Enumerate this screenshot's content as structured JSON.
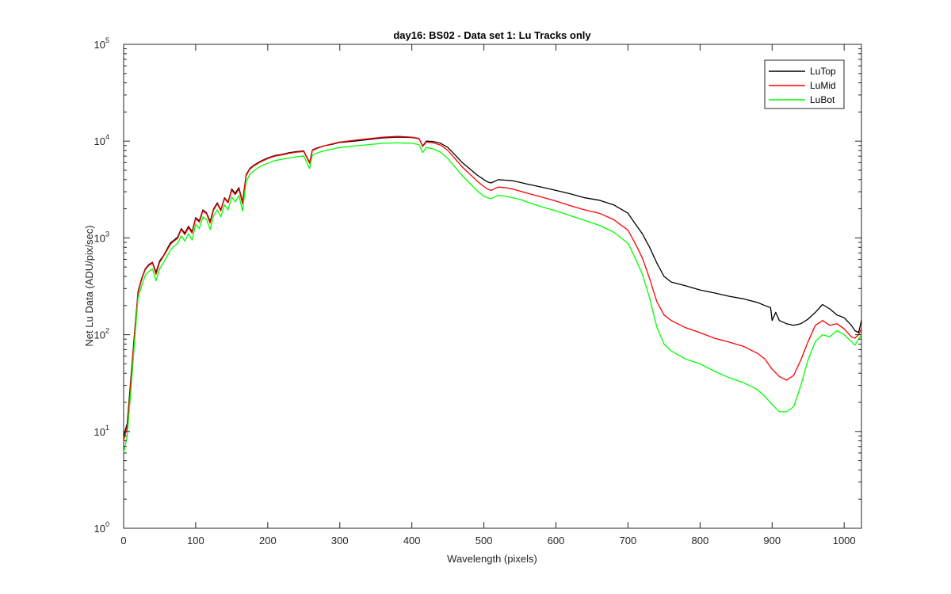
{
  "chart_data": {
    "type": "line",
    "title": "day16: BS02 - Data set 1: Lu Tracks only",
    "xlabel": "Wavelength (pixels)",
    "ylabel": "Net Lu Data (ADU/pix/sec)",
    "xlim": [
      0,
      1024
    ],
    "ylim": [
      1,
      100000
    ],
    "yscale": "log",
    "grid": false,
    "legend_position": "top-right",
    "x_ticks": [
      0,
      100,
      200,
      300,
      400,
      500,
      600,
      700,
      800,
      900,
      1000
    ],
    "y_ticks": [
      {
        "base": "10",
        "exp": "0",
        "value": 1
      },
      {
        "base": "10",
        "exp": "1",
        "value": 10
      },
      {
        "base": "10",
        "exp": "2",
        "value": 100
      },
      {
        "base": "10",
        "exp": "3",
        "value": 1000
      },
      {
        "base": "10",
        "exp": "4",
        "value": 10000
      },
      {
        "base": "10",
        "exp": "5",
        "value": 100000
      }
    ],
    "series": [
      {
        "name": "LuTop",
        "color": "#000000",
        "x": [
          0,
          5,
          10,
          15,
          20,
          25,
          30,
          35,
          40,
          45,
          50,
          55,
          60,
          65,
          70,
          75,
          80,
          85,
          90,
          95,
          100,
          105,
          110,
          115,
          120,
          125,
          130,
          135,
          140,
          145,
          150,
          155,
          160,
          165,
          170,
          175,
          180,
          190,
          200,
          210,
          220,
          230,
          240,
          250,
          258,
          262,
          270,
          280,
          290,
          300,
          320,
          340,
          360,
          380,
          400,
          410,
          415,
          420,
          430,
          440,
          450,
          460,
          470,
          480,
          490,
          500,
          505,
          510,
          520,
          530,
          540,
          550,
          560,
          580,
          600,
          620,
          640,
          660,
          680,
          700,
          710,
          720,
          730,
          740,
          750,
          760,
          780,
          800,
          820,
          840,
          860,
          880,
          890,
          898,
          900,
          905,
          910,
          920,
          930,
          940,
          950,
          960,
          970,
          980,
          990,
          1000,
          1010,
          1015,
          1020,
          1024
        ],
        "y": [
          9,
          12,
          35,
          100,
          280,
          380,
          480,
          530,
          560,
          440,
          580,
          650,
          760,
          890,
          950,
          1020,
          1250,
          1120,
          1320,
          1160,
          1620,
          1500,
          1950,
          1820,
          1480,
          2000,
          2300,
          1950,
          2600,
          2350,
          3200,
          2900,
          3300,
          2350,
          4500,
          5200,
          5600,
          6200,
          6700,
          7100,
          7300,
          7600,
          7800,
          7900,
          6000,
          8100,
          8600,
          9000,
          9300,
          9700,
          10000,
          10400,
          10800,
          11000,
          10900,
          10600,
          8900,
          10000,
          9900,
          9500,
          8600,
          7200,
          6000,
          5200,
          4500,
          4000,
          3800,
          3700,
          4000,
          3950,
          3900,
          3750,
          3600,
          3350,
          3100,
          2850,
          2600,
          2450,
          2200,
          1800,
          1400,
          1100,
          800,
          550,
          400,
          350,
          320,
          290,
          270,
          250,
          235,
          215,
          200,
          190,
          140,
          170,
          140,
          130,
          125,
          130,
          145,
          170,
          205,
          185,
          160,
          150,
          125,
          110,
          105,
          140
        ]
      },
      {
        "name": "LuMid",
        "color": "#ff0000",
        "x": [
          0,
          5,
          10,
          15,
          20,
          25,
          30,
          35,
          40,
          45,
          50,
          55,
          60,
          65,
          70,
          75,
          80,
          85,
          90,
          95,
          100,
          105,
          110,
          115,
          120,
          125,
          130,
          135,
          140,
          145,
          150,
          155,
          160,
          165,
          170,
          175,
          180,
          190,
          200,
          210,
          220,
          230,
          240,
          250,
          258,
          262,
          270,
          280,
          290,
          300,
          320,
          340,
          360,
          380,
          400,
          410,
          415,
          420,
          430,
          440,
          450,
          460,
          470,
          480,
          490,
          500,
          505,
          510,
          520,
          530,
          540,
          550,
          560,
          580,
          600,
          620,
          640,
          660,
          680,
          700,
          710,
          720,
          730,
          740,
          750,
          760,
          780,
          800,
          820,
          840,
          860,
          880,
          890,
          900,
          910,
          920,
          930,
          940,
          950,
          960,
          970,
          980,
          990,
          1000,
          1010,
          1015,
          1020,
          1024
        ],
        "y": [
          8,
          11,
          32,
          95,
          270,
          370,
          470,
          520,
          550,
          420,
          560,
          640,
          740,
          860,
          930,
          990,
          1220,
          1080,
          1280,
          1120,
          1580,
          1450,
          1900,
          1780,
          1420,
          1950,
          2250,
          1900,
          2550,
          2300,
          3100,
          2800,
          3200,
          2250,
          4400,
          5100,
          5500,
          6100,
          6600,
          7000,
          7200,
          7500,
          7700,
          7800,
          5900,
          8000,
          8500,
          9000,
          9400,
          9800,
          10200,
          10600,
          11000,
          11200,
          11000,
          10700,
          8800,
          9800,
          9600,
          9100,
          8000,
          6600,
          5400,
          4600,
          3900,
          3400,
          3200,
          3100,
          3350,
          3300,
          3200,
          3050,
          2900,
          2650,
          2400,
          2150,
          1950,
          1800,
          1550,
          1200,
          880,
          620,
          380,
          220,
          160,
          140,
          118,
          105,
          92,
          84,
          76,
          64,
          56,
          44,
          37,
          34,
          38,
          55,
          85,
          125,
          140,
          125,
          130,
          115,
          95,
          92,
          100,
          115
        ]
      },
      {
        "name": "LuBot",
        "color": "#00ff00",
        "x": [
          0,
          5,
          10,
          15,
          20,
          25,
          30,
          35,
          40,
          45,
          50,
          55,
          60,
          65,
          70,
          75,
          80,
          85,
          90,
          95,
          100,
          105,
          110,
          115,
          120,
          125,
          130,
          135,
          140,
          145,
          150,
          155,
          160,
          165,
          170,
          175,
          180,
          190,
          200,
          210,
          220,
          230,
          240,
          250,
          258,
          262,
          270,
          280,
          290,
          300,
          320,
          340,
          360,
          380,
          400,
          410,
          415,
          420,
          430,
          440,
          450,
          460,
          470,
          480,
          490,
          500,
          505,
          510,
          520,
          530,
          540,
          550,
          560,
          580,
          600,
          620,
          640,
          660,
          680,
          700,
          710,
          720,
          730,
          740,
          750,
          760,
          780,
          800,
          820,
          840,
          860,
          880,
          890,
          900,
          910,
          920,
          930,
          940,
          950,
          960,
          970,
          980,
          990,
          1000,
          1010,
          1015,
          1020,
          1024
        ],
        "y": [
          6,
          9,
          26,
          80,
          240,
          320,
          410,
          450,
          480,
          360,
          480,
          550,
          640,
          750,
          820,
          880,
          1050,
          930,
          1100,
          950,
          1380,
          1250,
          1650,
          1550,
          1220,
          1700,
          1950,
          1650,
          2200,
          1950,
          2650,
          2350,
          2750,
          1900,
          3800,
          4500,
          4900,
          5500,
          5900,
          6300,
          6500,
          6700,
          6900,
          7000,
          5200,
          7200,
          7600,
          8000,
          8300,
          8600,
          8900,
          9200,
          9500,
          9600,
          9500,
          9200,
          7600,
          8600,
          8300,
          7700,
          6600,
          5400,
          4400,
          3700,
          3100,
          2700,
          2600,
          2550,
          2750,
          2700,
          2600,
          2500,
          2350,
          2100,
          1900,
          1700,
          1520,
          1350,
          1150,
          880,
          620,
          420,
          240,
          120,
          80,
          68,
          56,
          50,
          42,
          36,
          32,
          27,
          23,
          19,
          16,
          16,
          18,
          30,
          55,
          85,
          100,
          95,
          110,
          100,
          85,
          78,
          90,
          100
        ]
      }
    ]
  }
}
